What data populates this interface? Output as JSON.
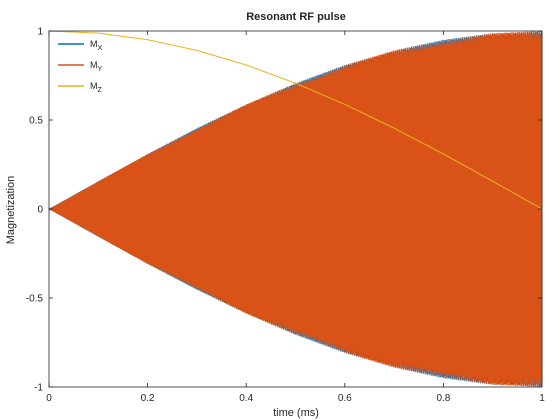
{
  "chart_data": {
    "type": "line",
    "title": "Resonant RF pulse",
    "xlabel": "time (ms)",
    "ylabel": "Magnetization",
    "xlim": [
      0,
      1
    ],
    "ylim": [
      -1,
      1
    ],
    "xticks": [
      0,
      0.2,
      0.4,
      0.6,
      0.8,
      1
    ],
    "xtick_labels": [
      "0",
      "0.2",
      "0.4",
      "0.6",
      "0.8",
      "1"
    ],
    "yticks": [
      -1,
      -0.5,
      0,
      0.5,
      1
    ],
    "ytick_labels": [
      "-1",
      "-0.5",
      "0",
      "0.5",
      "1"
    ],
    "grid": false,
    "legend_position": "top-left",
    "legend": [
      {
        "base": "M",
        "sub": "X",
        "color": "#0072BD"
      },
      {
        "base": "M",
        "sub": "Y",
        "color": "#D95319"
      },
      {
        "base": "M",
        "sub": "Z",
        "color": "#EDB120"
      }
    ],
    "series": [
      {
        "name": "MX",
        "color": "#0072BD",
        "description": "rapid oscillation, envelope grows from 0 to ±1",
        "x": [
          0,
          0.1,
          0.2,
          0.3,
          0.4,
          0.5,
          0.6,
          0.7,
          0.8,
          0.9,
          1.0
        ],
        "envelope": [
          0,
          0.156,
          0.309,
          0.454,
          0.588,
          0.707,
          0.809,
          0.891,
          0.951,
          0.988,
          1.0
        ]
      },
      {
        "name": "MY",
        "color": "#D95319",
        "description": "rapid oscillation, envelope grows from 0 to ±1",
        "x": [
          0,
          0.1,
          0.2,
          0.3,
          0.4,
          0.5,
          0.6,
          0.7,
          0.8,
          0.9,
          1.0
        ],
        "envelope": [
          0,
          0.156,
          0.309,
          0.454,
          0.588,
          0.707,
          0.809,
          0.891,
          0.951,
          0.988,
          1.0
        ]
      },
      {
        "name": "MZ",
        "color": "#EDB120",
        "x": [
          0,
          0.1,
          0.2,
          0.3,
          0.4,
          0.5,
          0.6,
          0.7,
          0.8,
          0.9,
          1.0
        ],
        "y": [
          1.0,
          0.988,
          0.951,
          0.891,
          0.809,
          0.707,
          0.588,
          0.454,
          0.309,
          0.156,
          0.0
        ]
      }
    ]
  }
}
